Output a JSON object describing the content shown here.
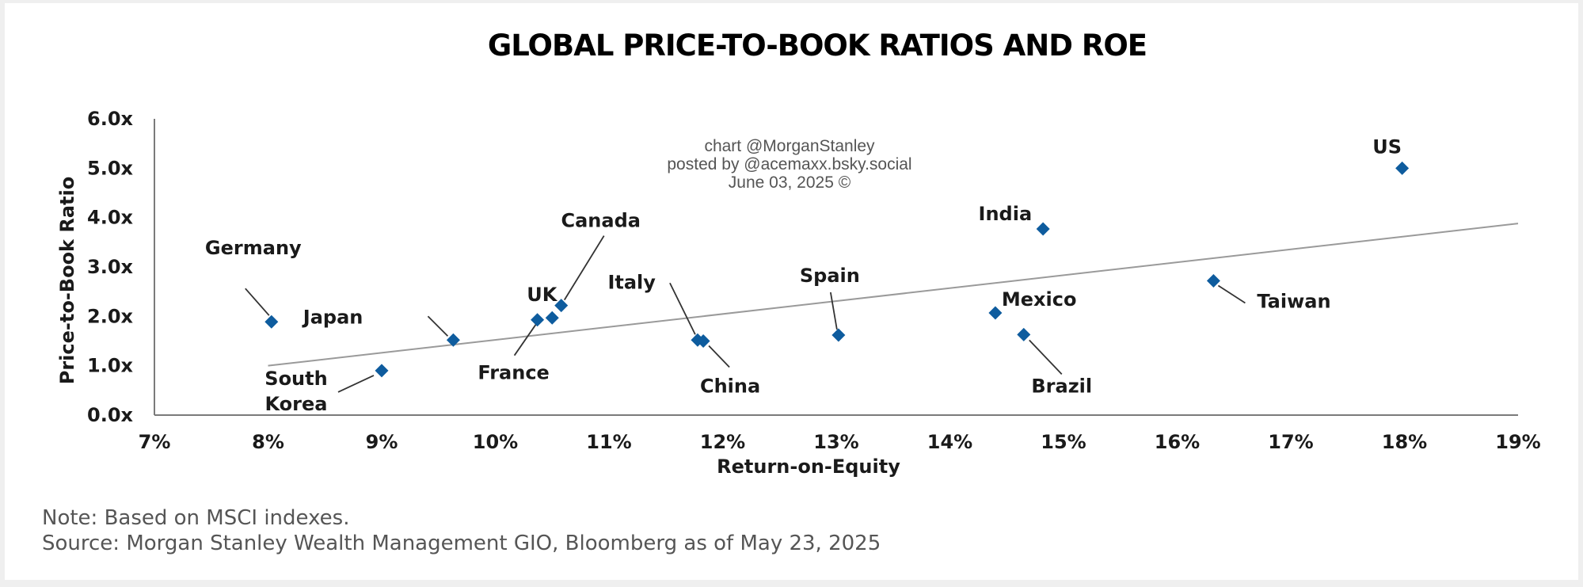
{
  "chart_data": {
    "type": "scatter",
    "title": "GLOBAL PRICE-TO-BOOK RATIOS AND ROE",
    "xlabel": "Return-on-Equity",
    "ylabel": "Price-to-Book Ratio",
    "xlim": [
      7,
      19
    ],
    "ylim": [
      0,
      6
    ],
    "x_ticks": [
      "7%",
      "8%",
      "9%",
      "10%",
      "11%",
      "12%",
      "13%",
      "14%",
      "15%",
      "16%",
      "17%",
      "18%",
      "19%"
    ],
    "y_ticks": [
      "0.0x",
      "1.0x",
      "2.0x",
      "3.0x",
      "4.0x",
      "5.0x",
      "6.0x"
    ],
    "points": [
      {
        "label": "Germany",
        "x": 8.03,
        "y": 1.89
      },
      {
        "label": "South Korea",
        "x": 9.0,
        "y": 0.9
      },
      {
        "label": "Japan",
        "x": 9.63,
        "y": 1.52
      },
      {
        "label": "France",
        "x": 10.37,
        "y": 1.93
      },
      {
        "label": "UK",
        "x": 10.5,
        "y": 1.97
      },
      {
        "label": "Canada",
        "x": 10.58,
        "y": 2.22
      },
      {
        "label": "Italy",
        "x": 11.78,
        "y": 1.52
      },
      {
        "label": "China",
        "x": 11.83,
        "y": 1.5
      },
      {
        "label": "Spain",
        "x": 13.02,
        "y": 1.62
      },
      {
        "label": "Mexico",
        "x": 14.4,
        "y": 2.07
      },
      {
        "label": "Brazil",
        "x": 14.65,
        "y": 1.63
      },
      {
        "label": "India",
        "x": 14.82,
        "y": 3.77
      },
      {
        "label": "Taiwan",
        "x": 16.32,
        "y": 2.72
      },
      {
        "label": "US",
        "x": 17.98,
        "y": 5.0
      }
    ],
    "trendline": {
      "x": [
        8.0,
        19.0
      ],
      "y": [
        1.0,
        3.88
      ]
    },
    "grid": false,
    "legend": "none",
    "marker_color": "#0e5c9e",
    "trendline_color": "#9a9a9a"
  },
  "watermark": {
    "line1": "chart @MorganStanley",
    "line2": "posted by @acemaxx.bsky.social",
    "line3": "June 03, 2025 ©"
  },
  "footer": {
    "note": "Note: Based on MSCI indexes.",
    "source": "Source: Morgan Stanley Wealth Management GIO, Bloomberg as of May 23, 2025"
  }
}
